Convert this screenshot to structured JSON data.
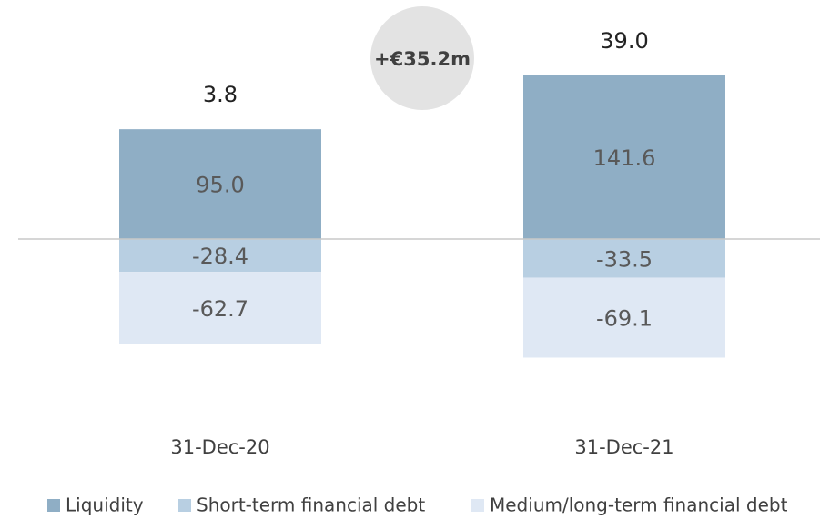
{
  "chart_data": {
    "type": "stacked-bar",
    "categories": [
      "31-Dec-20",
      "31-Dec-21"
    ],
    "series": [
      {
        "name": "Liquidity",
        "color": "#8faec5",
        "values": [
          95.0,
          141.6
        ],
        "value_labels": [
          "95.0",
          "141.6"
        ]
      },
      {
        "name": "Short-term financial debt",
        "color": "#b8cfe2",
        "values": [
          -28.4,
          -33.5
        ]
      },
      {
        "name": "Medium/long-term financial debt",
        "color": "#dfe8f4",
        "values": [
          -62.7,
          -69.1
        ]
      }
    ],
    "totals": {
      "values": [
        3.8,
        39.0
      ],
      "value_labels": [
        "3.8",
        "39.0"
      ]
    },
    "annotation": "+€35.2m",
    "ylim": [
      -150,
      200
    ],
    "legend": "bottom"
  }
}
